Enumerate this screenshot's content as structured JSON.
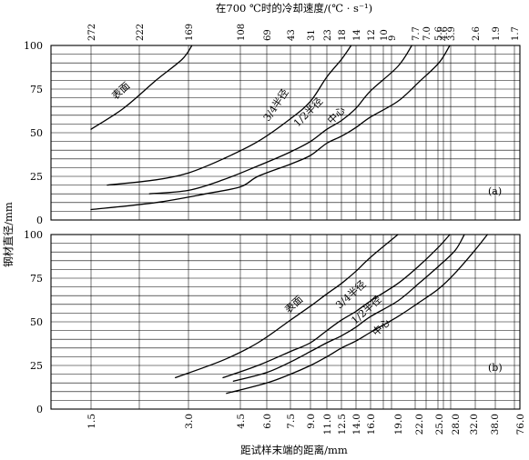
{
  "chart_data": {
    "type": "line",
    "top_axis_label": "在700 ℃时的冷却速度/(℃ · s⁻¹)",
    "top_ticks": [
      "272",
      "222",
      "169",
      "108",
      "69",
      "43",
      "31",
      "23",
      "18",
      "14",
      "12",
      "10",
      "9",
      "7.7",
      "7.0",
      "5.6",
      "4.6",
      "3.9",
      "2.6",
      "1.9",
      "1.7"
    ],
    "xlabel": "距试样末端的距离/mm",
    "x_ticks": [
      "1.5",
      "3.0",
      "4.5",
      "6.0",
      "7.5",
      "9.0",
      "11.0",
      "12.5",
      "14.0",
      "16.0",
      "19.0",
      "22.0",
      "25.0",
      "28.0",
      "32.0",
      "38.0",
      "76.0"
    ],
    "ylabel": "钢材直径/mm",
    "y_ticks": [
      "0",
      "25",
      "50",
      "75",
      "100"
    ],
    "ylim": [
      0,
      100
    ],
    "panels": [
      {
        "id": "a",
        "label": "(a)",
        "series": [
          {
            "name": "表面",
            "points": [
              [
                1.5,
                52
              ],
              [
                2.0,
                64
              ],
              [
                2.5,
                80
              ],
              [
                2.9,
                92
              ],
              [
                3.1,
                100
              ]
            ]
          },
          {
            "name": "3/4半径",
            "points": [
              [
                1.75,
                20
              ],
              [
                2.5,
                23
              ],
              [
                3.0,
                27
              ],
              [
                4.0,
                35
              ],
              [
                5.5,
                45
              ],
              [
                7.5,
                58
              ],
              [
                9.0,
                68
              ],
              [
                11.0,
                82
              ],
              [
                12.5,
                92
              ],
              [
                13.5,
                100
              ]
            ]
          },
          {
            "name": "1/2半径",
            "points": [
              [
                2.4,
                15
              ],
              [
                3.0,
                17
              ],
              [
                4.0,
                23
              ],
              [
                5.5,
                31
              ],
              [
                7.5,
                39
              ],
              [
                9.0,
                45
              ],
              [
                11.0,
                52
              ],
              [
                12.5,
                57
              ],
              [
                14.0,
                64
              ],
              [
                16.0,
                74
              ],
              [
                19.0,
                88
              ],
              [
                21.0,
                100
              ]
            ]
          },
          {
            "name": "中心",
            "points": [
              [
                1.5,
                6
              ],
              [
                2.5,
                10
              ],
              [
                3.5,
                15
              ],
              [
                4.5,
                19
              ],
              [
                5.5,
                25
              ],
              [
                7.5,
                32
              ],
              [
                9.0,
                37
              ],
              [
                11.0,
                44
              ],
              [
                12.5,
                48
              ],
              [
                14.0,
                53
              ],
              [
                16.0,
                59
              ],
              [
                19.0,
                68
              ],
              [
                22.0,
                79
              ],
              [
                25.0,
                90
              ],
              [
                27.0,
                100
              ]
            ]
          }
        ]
      },
      {
        "id": "b",
        "label": "(b)",
        "series": [
          {
            "name": "表面",
            "points": [
              [
                2.8,
                18
              ],
              [
                4.0,
                28
              ],
              [
                5.5,
                38
              ],
              [
                7.5,
                51
              ],
              [
                9.0,
                59
              ],
              [
                11.0,
                66
              ],
              [
                12.5,
                72
              ],
              [
                14.0,
                79
              ],
              [
                16.0,
                87
              ],
              [
                19.0,
                100
              ]
            ]
          },
          {
            "name": "3/4半径",
            "points": [
              [
                4.0,
                18
              ],
              [
                5.5,
                25
              ],
              [
                7.5,
                33
              ],
              [
                9.0,
                38
              ],
              [
                11.0,
                45
              ],
              [
                12.5,
                51
              ],
              [
                14.0,
                56
              ],
              [
                16.0,
                62
              ],
              [
                19.0,
                72
              ],
              [
                22.0,
                82
              ],
              [
                25.0,
                93
              ],
              [
                27.0,
                100
              ]
            ]
          },
          {
            "name": "1/2半径",
            "points": [
              [
                4.3,
                16
              ],
              [
                6.0,
                21
              ],
              [
                7.5,
                27
              ],
              [
                9.0,
                33
              ],
              [
                11.0,
                38
              ],
              [
                12.5,
                42
              ],
              [
                14.0,
                47
              ],
              [
                16.0,
                53
              ],
              [
                19.0,
                62
              ],
              [
                22.0,
                72
              ],
              [
                25.0,
                82
              ],
              [
                28.0,
                91
              ],
              [
                30.0,
                100
              ]
            ]
          },
          {
            "name": "中心",
            "points": [
              [
                4.1,
                9
              ],
              [
                6.0,
                15
              ],
              [
                7.5,
                20
              ],
              [
                9.0,
                25
              ],
              [
                11.0,
                30
              ],
              [
                12.5,
                35
              ],
              [
                14.0,
                39
              ],
              [
                16.0,
                44
              ],
              [
                19.0,
                53
              ],
              [
                22.0,
                61
              ],
              [
                25.0,
                69
              ],
              [
                28.0,
                78
              ],
              [
                32.0,
                90
              ],
              [
                36.0,
                100
              ]
            ]
          }
        ]
      }
    ]
  }
}
